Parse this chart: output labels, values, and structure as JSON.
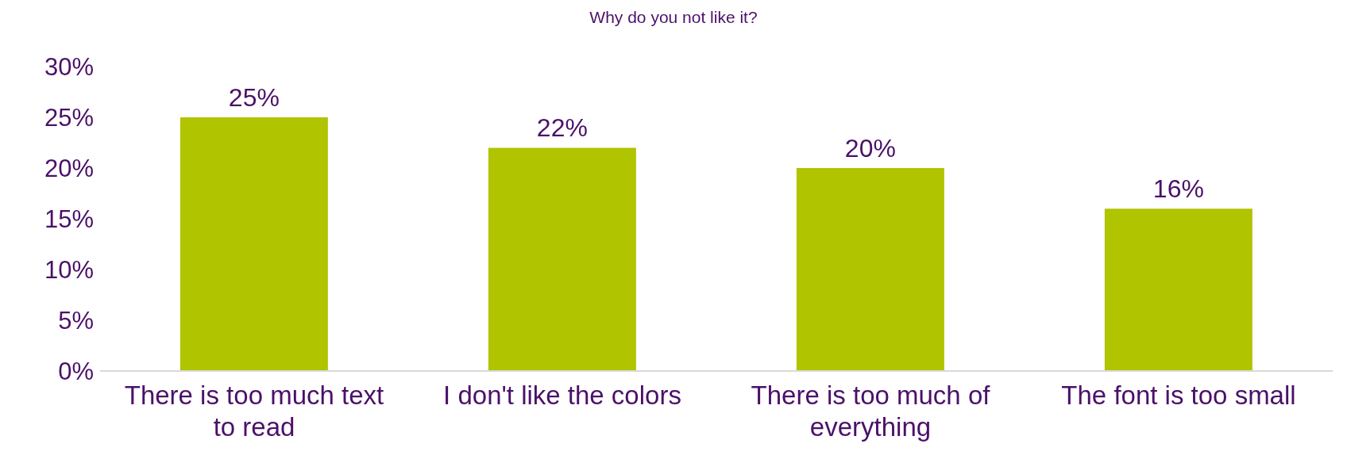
{
  "chart_data": {
    "type": "bar",
    "title": "Why do you not like it?",
    "categories": [
      "There is too much text to read",
      "I don't like the colors",
      "There is too much of everything",
      "The font is too small"
    ],
    "values": [
      25,
      22,
      20,
      16
    ],
    "value_labels": [
      "25%",
      "22%",
      "20%",
      "16%"
    ],
    "color": "#b0c400",
    "ylim": [
      0,
      30
    ],
    "yticks": [
      {
        "value": 0,
        "label": "0%"
      },
      {
        "value": 5,
        "label": "5%"
      },
      {
        "value": 10,
        "label": "10%"
      },
      {
        "value": 15,
        "label": "15%"
      },
      {
        "value": 20,
        "label": "20%"
      },
      {
        "value": 25,
        "label": "25%"
      },
      {
        "value": 30,
        "label": "30%"
      }
    ],
    "grid": false,
    "legend": false
  }
}
